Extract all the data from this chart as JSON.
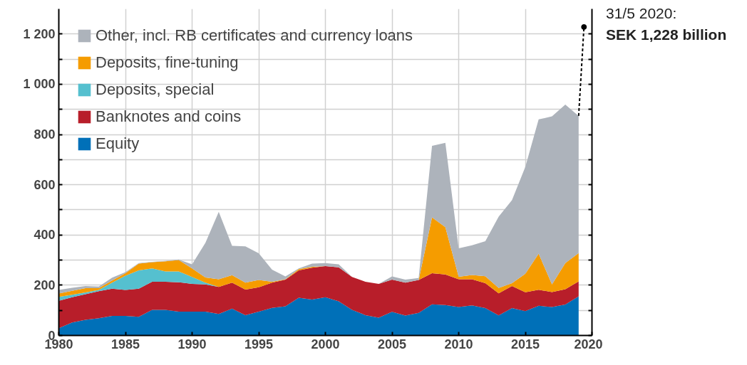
{
  "chart_data": {
    "type": "area",
    "stacked": true,
    "x": [
      1980,
      1981,
      1982,
      1983,
      1984,
      1985,
      1986,
      1987,
      1988,
      1989,
      1990,
      1991,
      1992,
      1993,
      1994,
      1995,
      1996,
      1997,
      1998,
      1999,
      2000,
      2001,
      2002,
      2003,
      2004,
      2005,
      2006,
      2007,
      2008,
      2009,
      2010,
      2011,
      2012,
      2013,
      2014,
      2015,
      2016,
      2017,
      2018,
      2019
    ],
    "series": [
      {
        "name": "Equity",
        "color": "#0070b8",
        "values": [
          29,
          52,
          62,
          69,
          78,
          78,
          74,
          102,
          102,
          95,
          95,
          95,
          86,
          107,
          81,
          95,
          110,
          116,
          150,
          143,
          152,
          136,
          102,
          81,
          71,
          94,
          79,
          90,
          124,
          121,
          113,
          120,
          109,
          80,
          109,
          97,
          118,
          113,
          123,
          156
        ]
      },
      {
        "name": "Banknotes and coins",
        "color": "#b81e2a",
        "values": [
          109,
          100,
          102,
          107,
          108,
          103,
          112,
          112,
          112,
          117,
          110,
          108,
          107,
          103,
          102,
          97,
          100,
          106,
          109,
          127,
          124,
          135,
          131,
          133,
          134,
          128,
          131,
          131,
          124,
          122,
          111,
          104,
          99,
          88,
          88,
          75,
          64,
          60,
          61,
          59
        ]
      },
      {
        "name": "Deposits, special",
        "color": "#55c0cf",
        "values": [
          16,
          10,
          7,
          5,
          24,
          57,
          73,
          53,
          41,
          43,
          28,
          7,
          0,
          0,
          0,
          0,
          0,
          0,
          0,
          0,
          0,
          0,
          0,
          0,
          0,
          0,
          0,
          0,
          0,
          0,
          0,
          0,
          0,
          0,
          0,
          0,
          0,
          0,
          0,
          0
        ]
      },
      {
        "name": "Deposits, fine-tuning",
        "color": "#f59c00",
        "values": [
          13,
          16,
          17,
          7,
          9,
          10,
          27,
          25,
          40,
          45,
          34,
          21,
          31,
          30,
          27,
          29,
          4,
          2,
          5,
          3,
          0,
          0,
          0,
          0,
          0,
          0,
          0,
          0,
          222,
          188,
          10,
          17,
          28,
          21,
          11,
          74,
          144,
          30,
          104,
          113
        ]
      },
      {
        "name": "Other, incl. RB certificates and currency loans",
        "color": "#adb3bb",
        "values": [
          14,
          12,
          9,
          7,
          11,
          4,
          2,
          1,
          2,
          2,
          16,
          138,
          268,
          117,
          145,
          106,
          48,
          11,
          3,
          13,
          12,
          12,
          0,
          0,
          0,
          13,
          12,
          8,
          285,
          336,
          113,
          118,
          139,
          284,
          331,
          425,
          534,
          669,
          631,
          546
        ]
      },
      {
        "type": "line",
        "x": [
          2019,
          2019.4
        ],
        "values": [
          874,
          1228
        ],
        "color": "#000000",
        "line_style": "dashed"
      }
    ],
    "xlim": [
      1980,
      2020
    ],
    "xticks": [
      1980,
      1985,
      1990,
      1995,
      2000,
      2005,
      2010,
      2015,
      2020
    ],
    "ylim": [
      0,
      1300
    ],
    "yticks": [
      0,
      {
        "value": 100,
        "label": null
      },
      200,
      {
        "value": 300,
        "label": null
      },
      400,
      {
        "value": 500,
        "label": null
      },
      600,
      {
        "value": 700,
        "label": null
      },
      800,
      {
        "value": 900,
        "label": null
      },
      {
        "value": 1000,
        "label": "1 000"
      },
      {
        "value": 1100,
        "label": null
      },
      {
        "value": 1200,
        "label": "1 200"
      }
    ],
    "grid": true,
    "legend": "top left",
    "annotations": [
      {
        "text": "31/5 2020:",
        "x": 2019.4,
        "y": 1228
      },
      "SEK 1,228 billion"
    ]
  }
}
